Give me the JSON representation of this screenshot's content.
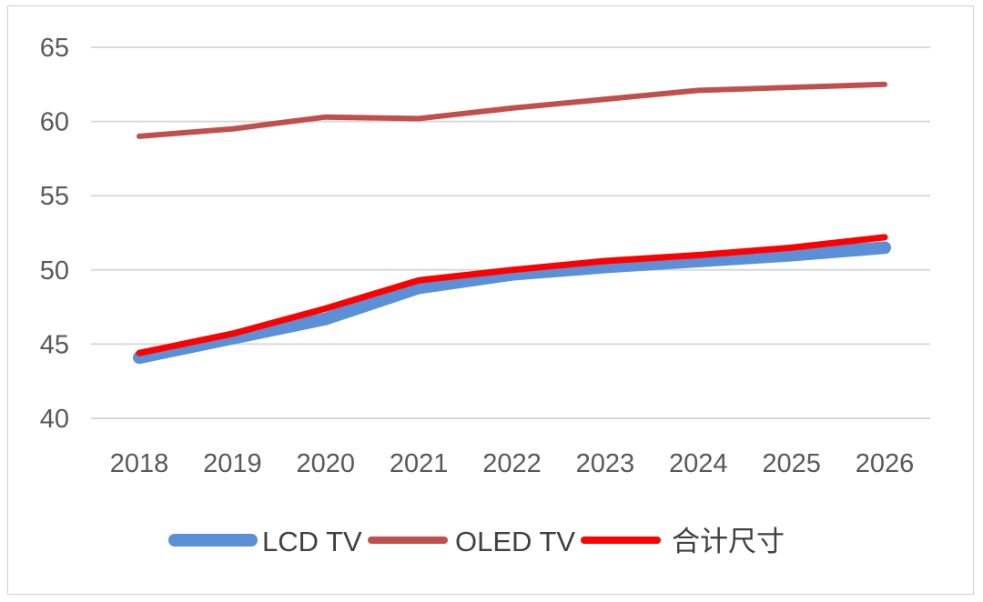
{
  "chart_data": {
    "type": "line",
    "title": "",
    "xlabel": "",
    "ylabel": "",
    "categories": [
      "2018",
      "2019",
      "2020",
      "2021",
      "2022",
      "2023",
      "2024",
      "2025",
      "2026"
    ],
    "ylim": [
      40,
      65
    ],
    "yticks": [
      40,
      45,
      50,
      55,
      60,
      65
    ],
    "grid": true,
    "legend_position": "bottom",
    "series": [
      {
        "name": "LCD TV",
        "color": "#5b8fd6",
        "values": [
          44.1,
          45.4,
          46.7,
          48.8,
          49.7,
          50.2,
          50.6,
          51.0,
          51.5
        ]
      },
      {
        "name": "OLED TV",
        "color": "#c0504d",
        "values": [
          59.0,
          59.5,
          60.3,
          60.2,
          60.9,
          61.5,
          62.1,
          62.3,
          62.5
        ]
      },
      {
        "name": "合计尺寸",
        "color": "#ff0000",
        "values": [
          44.4,
          45.7,
          47.4,
          49.3,
          50.0,
          50.6,
          51.0,
          51.5,
          52.2
        ]
      }
    ]
  }
}
